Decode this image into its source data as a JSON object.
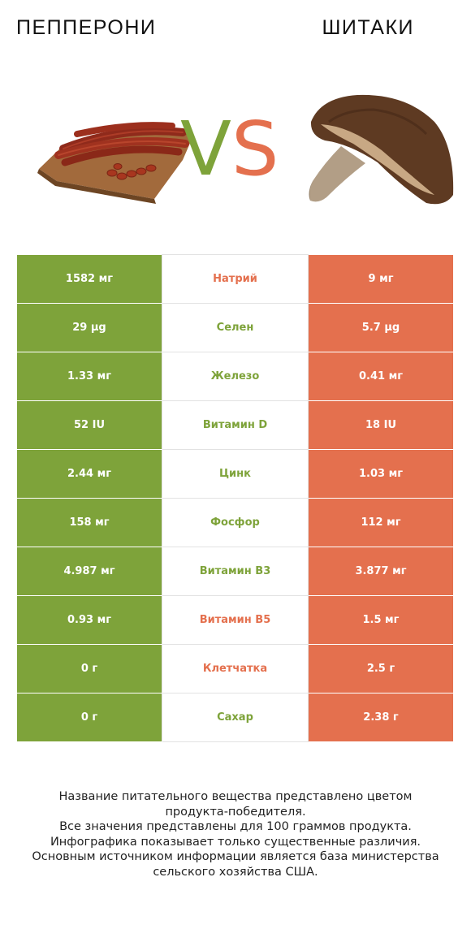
{
  "header": {
    "left_title": "ПЕППЕРОНИ",
    "right_title": "ШИТАКИ",
    "vs_v": "V",
    "vs_s": "S"
  },
  "colors": {
    "left_product": "#7ea33a",
    "right_product": "#e4704e"
  },
  "images": {
    "left": "pepperoni-on-cutting-board",
    "right": "shiitake-mushroom"
  },
  "rows": [
    {
      "left": "1582 мг",
      "name": "Натрий",
      "right": "9 мг",
      "winner": "right"
    },
    {
      "left": "29 µg",
      "name": "Селен",
      "right": "5.7 µg",
      "winner": "left"
    },
    {
      "left": "1.33 мг",
      "name": "Железо",
      "right": "0.41 мг",
      "winner": "left"
    },
    {
      "left": "52 IU",
      "name": "Витамин D",
      "right": "18 IU",
      "winner": "left"
    },
    {
      "left": "2.44 мг",
      "name": "Цинк",
      "right": "1.03 мг",
      "winner": "left"
    },
    {
      "left": "158 мг",
      "name": "Фосфор",
      "right": "112 мг",
      "winner": "left"
    },
    {
      "left": "4.987 мг",
      "name": "Витамин B3",
      "right": "3.877 мг",
      "winner": "left"
    },
    {
      "left": "0.93 мг",
      "name": "Витамин B5",
      "right": "1.5 мг",
      "winner": "right"
    },
    {
      "left": "0 г",
      "name": "Клетчатка",
      "right": "2.5 г",
      "winner": "right"
    },
    {
      "left": "0 г",
      "name": "Сахар",
      "right": "2.38 г",
      "winner": "left"
    }
  ],
  "footer": {
    "line1": "Название питательного вещества представлено цветом",
    "line2": "продукта-победителя.",
    "line3": "Все значения представлены для 100 граммов продукта.",
    "line4": "Инфографика показывает только существенные различия.",
    "line5": "Основным источником информации является база министерства",
    "line6": "сельского хозяйства США."
  }
}
